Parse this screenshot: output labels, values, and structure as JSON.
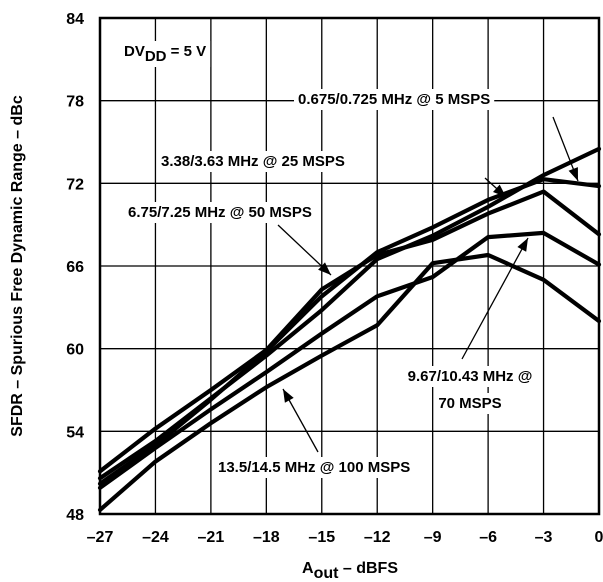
{
  "chart_data": {
    "type": "line",
    "xlabel": "A",
    "xlabel_sub": "out",
    "xlabel_suffix": " – dBFS",
    "ylabel": "SFDR – Spurious Free Dynamic Range – dBc",
    "xlim": [
      -27,
      0
    ],
    "ylim": [
      48,
      84
    ],
    "x_ticks": [
      -27,
      -24,
      -21,
      -18,
      -15,
      -12,
      -9,
      -6,
      -3,
      0
    ],
    "x_tick_labels": [
      "–27",
      "–24",
      "–21",
      "–18",
      "–15",
      "–12",
      "–9",
      "–6",
      "–3",
      "0"
    ],
    "y_ticks": [
      48,
      54,
      60,
      66,
      72,
      78,
      84
    ],
    "y_tick_labels": [
      "48",
      "54",
      "60",
      "66",
      "72",
      "78",
      "84"
    ],
    "grid": true,
    "condition": {
      "prefix": "DV",
      "sub": "DD",
      "suffix": " = 5 V"
    },
    "x": [
      -27,
      -24,
      -21,
      -18,
      -15,
      -12,
      -9,
      -6,
      -3,
      0
    ],
    "series": [
      {
        "name": "0.675/0.725 MHz @ 5 MSPS",
        "values": [
          50.6,
          53.3,
          56.4,
          59.5,
          62.8,
          66.5,
          68.2,
          70.3,
          72.6,
          74.5
        ]
      },
      {
        "name": "3.38/3.63 MHz @ 25 MSPS",
        "values": [
          50.2,
          53.0,
          56.3,
          59.8,
          63.8,
          67.0,
          68.8,
          70.8,
          72.3,
          71.8
        ]
      },
      {
        "name": "6.75/7.25 MHz @ 50 MSPS",
        "values": [
          51.1,
          54.2,
          57.0,
          59.9,
          64.3,
          66.8,
          67.9,
          69.8,
          71.4,
          68.3
        ]
      },
      {
        "name": "9.67/10.43 MHz @ 70 MSPS",
        "values": [
          49.9,
          52.8,
          55.6,
          58.3,
          61.1,
          63.8,
          65.2,
          68.1,
          68.4,
          66.1
        ]
      },
      {
        "name": "13.5/14.5 MHz @ 100 MSPS",
        "values": [
          48.3,
          51.8,
          54.6,
          57.2,
          59.5,
          61.7,
          66.2,
          66.8,
          65.0,
          62.0
        ]
      }
    ],
    "annotations": [
      {
        "text": "0.675/0.725 MHz @ 5 MSPS"
      },
      {
        "text": "3.38/3.63 MHz @ 25 MSPS"
      },
      {
        "text": "6.75/7.25 MHz @ 50 MSPS"
      },
      {
        "text": "9.67/10.43 MHz @"
      },
      {
        "text": "70 MSPS"
      },
      {
        "text": "13.5/14.5 MHz @ 100 MSPS"
      }
    ]
  }
}
